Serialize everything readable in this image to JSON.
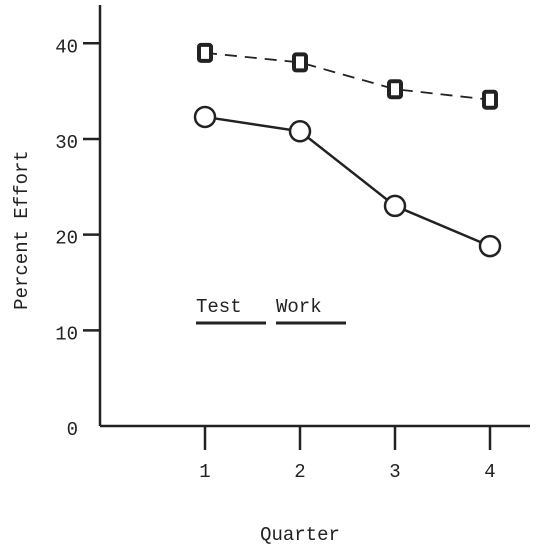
{
  "chart_data": {
    "type": "line",
    "x_label": "Quarter",
    "y_label": "Percent Effort",
    "categories": [
      "1",
      "2",
      "3",
      "4"
    ],
    "series": [
      {
        "name": "Test",
        "color": "#222222",
        "line_style": "solid",
        "marker": "circle",
        "values": [
          32.3,
          30.8,
          23.0,
          18.8
        ]
      },
      {
        "name": "Work",
        "color": "#222222",
        "line_style": "dashed",
        "marker": "square",
        "values": [
          39.0,
          38.0,
          35.2,
          34.1
        ]
      }
    ],
    "ylim": [
      0,
      44
    ],
    "yticks": [
      0,
      10,
      20,
      30,
      40
    ]
  }
}
